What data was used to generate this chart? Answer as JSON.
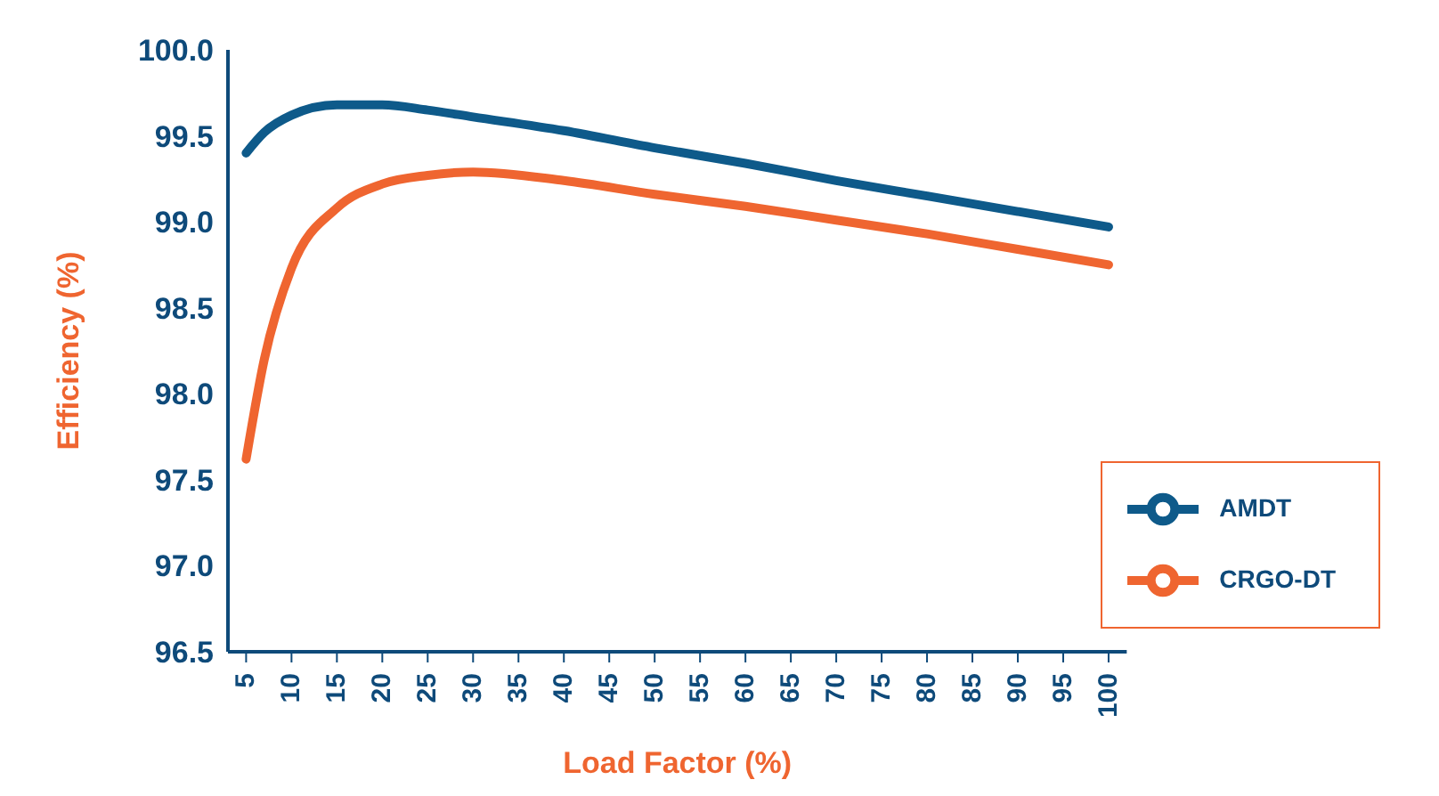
{
  "chart_data": {
    "type": "line",
    "xlabel": "Load Factor (%)",
    "ylabel": "Efficiency (%)",
    "xlim": [
      3,
      102
    ],
    "xticks": [
      5,
      10,
      15,
      20,
      25,
      30,
      35,
      40,
      45,
      50,
      55,
      60,
      65,
      70,
      75,
      80,
      85,
      90,
      95,
      100
    ],
    "ylim": [
      96.5,
      100
    ],
    "yticks": [
      {
        "value": 96.5,
        "label": "96.5"
      },
      {
        "value": 97,
        "label": "97.0"
      },
      {
        "value": 97.5,
        "label": "97.5"
      },
      {
        "value": 98,
        "label": "98.0"
      },
      {
        "value": 98.5,
        "label": "98.5"
      },
      {
        "value": 99,
        "label": "99.0"
      },
      {
        "value": 99.5,
        "label": "99.5"
      },
      {
        "value": 100,
        "label": "100.0"
      }
    ],
    "grid": false,
    "legend": "bottom right",
    "marker": "none",
    "line_style": "solid",
    "series": [
      {
        "name": "AMDT",
        "color": "#0e5a8a",
        "x": [
          5,
          7,
          10,
          15,
          20,
          25,
          30,
          40,
          50,
          60,
          70,
          80,
          90,
          100
        ],
        "values": [
          99.4,
          99.52,
          99.62,
          99.68,
          99.68,
          99.65,
          99.61,
          99.53,
          99.43,
          99.34,
          99.24,
          99.15,
          99.06,
          98.97
        ]
      },
      {
        "name": "CRGO-DT",
        "color": "#ef6530",
        "x": [
          5,
          7,
          10,
          15,
          20,
          25,
          30,
          40,
          50,
          60,
          70,
          80,
          90,
          100
        ],
        "values": [
          97.62,
          98.2,
          98.73,
          99.08,
          99.22,
          99.27,
          99.29,
          99.24,
          99.16,
          99.09,
          99.01,
          98.93,
          98.84,
          98.75
        ]
      }
    ]
  }
}
